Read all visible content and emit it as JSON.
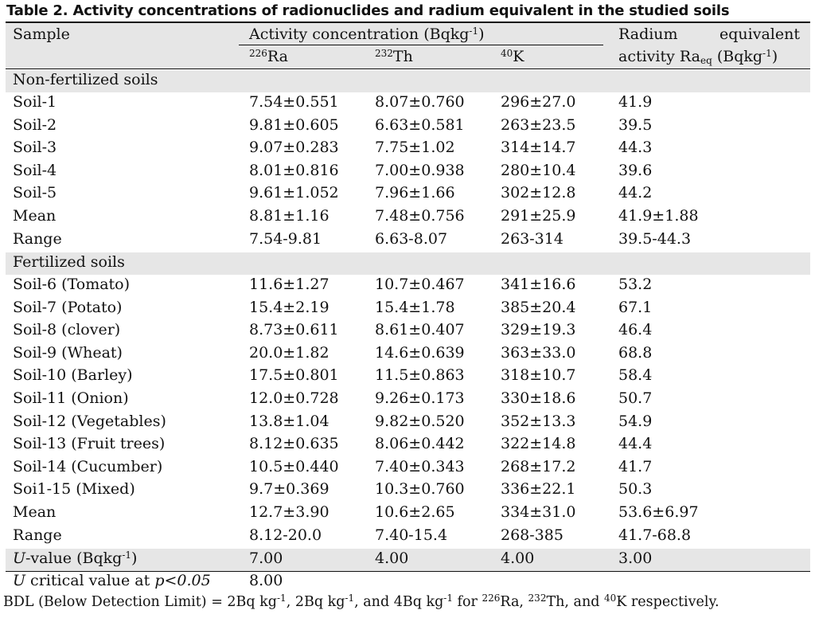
{
  "title": "Table 2. Activity concentrations of radionuclides and radium equivalent in the studied soils",
  "header": {
    "sample": "Sample",
    "activity_group": "Activity concentration (Bqkg",
    "activity_group_sup": "-1",
    "activity_group_end": ")",
    "ra_mass": "226",
    "ra_label": "Ra",
    "th_mass": "232",
    "th_label": "Th",
    "k_mass": "40",
    "k_label": "K",
    "raeq_line1_a": "Radium",
    "raeq_line1_b": "equivalent",
    "raeq_line2_a": "activity Ra",
    "raeq_line2_sub": "eq",
    "raeq_line2_b": " (Bqkg",
    "raeq_line2_sup": "-1",
    "raeq_line2_c": ")"
  },
  "sections": {
    "non_fertilized": "Non-fertilized soils",
    "fertilized": "Fertilized soils"
  },
  "non_fertilized_rows": [
    [
      "Soil-1",
      "7.54±0.551",
      "8.07±0.760",
      "296±27.0",
      "41.9"
    ],
    [
      "Soil-2",
      "9.81±0.605",
      "6.63±0.581",
      "263±23.5",
      "39.5"
    ],
    [
      "Soil-3",
      "9.07±0.283",
      "7.75±1.02",
      "314±14.7",
      "44.3"
    ],
    [
      "Soil-4",
      "8.01±0.816",
      "7.00±0.938",
      "280±10.4",
      "39.6"
    ],
    [
      "Soil-5",
      "9.61±1.052",
      "7.96±1.66",
      "302±12.8",
      "44.2"
    ],
    [
      "Mean",
      "8.81±1.16",
      "7.48±0.756",
      "291±25.9",
      "41.9±1.88"
    ],
    [
      "Range",
      "7.54-9.81",
      "6.63-8.07",
      "263-314",
      "39.5-44.3"
    ]
  ],
  "fertilized_rows": [
    [
      "Soil-6 (Tomato)",
      "11.6±1.27",
      "10.7±0.467",
      "341±16.6",
      "53.2"
    ],
    [
      "Soil-7 (Potato)",
      "15.4±2.19",
      "15.4±1.78",
      "385±20.4",
      "67.1"
    ],
    [
      "Soil-8 (clover)",
      "8.73±0.611",
      "8.61±0.407",
      "329±19.3",
      "46.4"
    ],
    [
      "Soil-9 (Wheat)",
      "20.0±1.82",
      "14.6±0.639",
      "363±33.0",
      "68.8"
    ],
    [
      "Soil-10 (Barley)",
      "17.5±0.801",
      "11.5±0.863",
      "318±10.7",
      "58.4"
    ],
    [
      "Soil-11 (Onion)",
      "12.0±0.728",
      "9.26±0.173",
      "330±18.6",
      "50.7"
    ],
    [
      "Soil-12 (Vegetables)",
      "13.8±1.04",
      "9.82±0.520",
      "352±13.3",
      "54.9"
    ],
    [
      "Soil-13 (Fruit trees)",
      "8.12±0.635",
      "8.06±0.442",
      "322±14.8",
      "44.4"
    ],
    [
      "Soil-14 (Cucumber)",
      "10.5±0.440",
      "7.40±0.343",
      "268±17.2",
      "41.7"
    ],
    [
      "Soi1-15 (Mixed)",
      "9.7±0.369",
      "10.3±0.760",
      "336±22.1",
      "50.3"
    ],
    [
      "Mean",
      "12.7±3.90",
      "10.6±2.65",
      "334±31.0",
      "53.6±6.97"
    ],
    [
      "Range",
      "8.12-20.0",
      "7.40-15.4",
      "268-385",
      "41.7-68.8"
    ]
  ],
  "u_value": {
    "label_italic": "U",
    "label_rest": "-value (Bqkg",
    "label_sup": "-1",
    "label_end": ")",
    "values": [
      "7.00",
      "4.00",
      "4.00",
      "3.00"
    ]
  },
  "u_critical": {
    "label_italic": "U",
    "label_mid": " critical value at ",
    "label_p": "p<0.05",
    "value": "8.00"
  },
  "footnote": {
    "a": "BDL (Below Detection Limit) = 2Bq kg",
    "sup1": "-1",
    "b": ", 2Bq kg",
    "sup2": "-1",
    "c": ", and 4Bq kg",
    "sup3": "-1",
    "d": " for ",
    "ra_mass": "226",
    "ra": "Ra, ",
    "th_mass": "232",
    "th": "Th, and ",
    "k_mass": "40",
    "k": "K respectively."
  }
}
